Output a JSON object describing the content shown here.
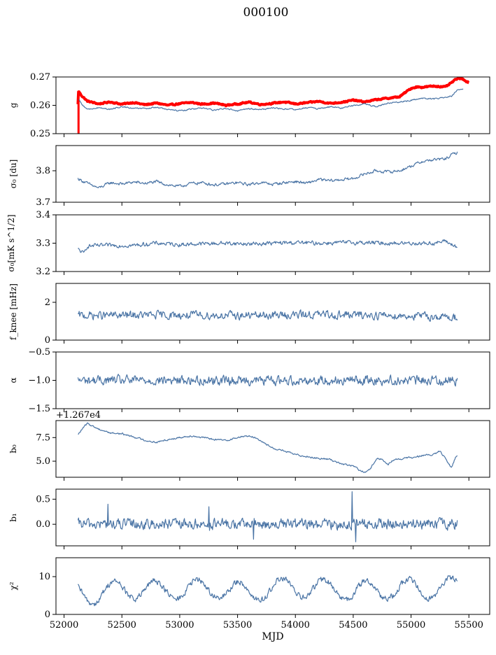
{
  "figure": {
    "title": "000100"
  },
  "chart_data": [
    {
      "type": "line",
      "title": "000100",
      "xlabel": "",
      "ylabel": "g",
      "xlim": [
        51930,
        55680
      ],
      "ylim": [
        0.25,
        0.27
      ],
      "yticks": [
        0.25,
        0.26,
        0.27
      ],
      "ytick_labels": [
        "0.25",
        "0.26",
        "0.27"
      ],
      "series": [
        {
          "name": "",
          "color": "#ff0000",
          "style": "thick",
          "points": [
            [
              52120,
              0.2603
            ],
            [
              52125,
              0.265
            ],
            [
              52150,
              0.2635
            ],
            [
              52200,
              0.2615
            ],
            [
              52300,
              0.2605
            ],
            [
              52400,
              0.2612
            ],
            [
              52500,
              0.2604
            ],
            [
              52600,
              0.261
            ],
            [
              52700,
              0.2602
            ],
            [
              52800,
              0.2608
            ],
            [
              52900,
              0.26
            ],
            [
              53000,
              0.2606
            ],
            [
              53100,
              0.261
            ],
            [
              53200,
              0.2604
            ],
            [
              53300,
              0.2608
            ],
            [
              53400,
              0.26
            ],
            [
              53500,
              0.2605
            ],
            [
              53600,
              0.2611
            ],
            [
              53700,
              0.2603
            ],
            [
              53800,
              0.2607
            ],
            [
              53900,
              0.2612
            ],
            [
              54000,
              0.2605
            ],
            [
              54100,
              0.2609
            ],
            [
              54200,
              0.2614
            ],
            [
              54300,
              0.2607
            ],
            [
              54400,
              0.2611
            ],
            [
              54500,
              0.2618
            ],
            [
              54600,
              0.2612
            ],
            [
              54700,
              0.262
            ],
            [
              54800,
              0.2625
            ],
            [
              54900,
              0.263
            ],
            [
              55000,
              0.266
            ],
            [
              55050,
              0.2665
            ],
            [
              55100,
              0.2664
            ],
            [
              55200,
              0.2668
            ],
            [
              55300,
              0.2665
            ],
            [
              55400,
              0.2695
            ],
            [
              55450,
              0.2692
            ],
            [
              55500,
              0.268
            ]
          ]
        },
        {
          "name": "",
          "color": "#4a74a5",
          "style": "thin",
          "points": [
            [
              52130,
              0.262
            ],
            [
              52150,
              0.2605
            ],
            [
              52200,
              0.2585
            ],
            [
              52300,
              0.2592
            ],
            [
              52400,
              0.2586
            ],
            [
              52500,
              0.2595
            ],
            [
              52600,
              0.259
            ],
            [
              52700,
              0.2588
            ],
            [
              52800,
              0.2593
            ],
            [
              52900,
              0.2585
            ],
            [
              53000,
              0.258
            ],
            [
              53100,
              0.2587
            ],
            [
              53200,
              0.259
            ],
            [
              53300,
              0.2583
            ],
            [
              53400,
              0.259
            ],
            [
              53500,
              0.258
            ],
            [
              53600,
              0.2588
            ],
            [
              53700,
              0.2585
            ],
            [
              53800,
              0.259
            ],
            [
              53900,
              0.2588
            ],
            [
              54000,
              0.2585
            ],
            [
              54100,
              0.2592
            ],
            [
              54200,
              0.2588
            ],
            [
              54300,
              0.2595
            ],
            [
              54400,
              0.259
            ],
            [
              54500,
              0.26
            ],
            [
              54600,
              0.2605
            ],
            [
              54700,
              0.2595
            ],
            [
              54800,
              0.2608
            ],
            [
              54900,
              0.2612
            ],
            [
              55000,
              0.2618
            ],
            [
              55100,
              0.2625
            ],
            [
              55200,
              0.2622
            ],
            [
              55300,
              0.263
            ],
            [
              55350,
              0.2632
            ],
            [
              55400,
              0.2655
            ],
            [
              55450,
              0.2658
            ]
          ]
        }
      ]
    },
    {
      "type": "line",
      "title": "",
      "xlabel": "",
      "ylabel": "σ₀ [du]",
      "xlim": [
        51930,
        55680
      ],
      "ylim": [
        3.7,
        3.88
      ],
      "yticks": [
        3.7,
        3.8
      ],
      "ytick_labels": [
        "3.7",
        "3.8"
      ],
      "series": [
        {
          "name": "",
          "color": "#4a74a5",
          "noise": 0.004,
          "points": [
            [
              52120,
              3.775
            ],
            [
              52200,
              3.76
            ],
            [
              52300,
              3.745
            ],
            [
              52400,
              3.762
            ],
            [
              52500,
              3.758
            ],
            [
              52600,
              3.764
            ],
            [
              52700,
              3.76
            ],
            [
              52800,
              3.765
            ],
            [
              52900,
              3.755
            ],
            [
              53000,
              3.75
            ],
            [
              53100,
              3.76
            ],
            [
              53200,
              3.762
            ],
            [
              53300,
              3.755
            ],
            [
              53400,
              3.758
            ],
            [
              53500,
              3.762
            ],
            [
              53600,
              3.756
            ],
            [
              53700,
              3.763
            ],
            [
              53800,
              3.757
            ],
            [
              53900,
              3.762
            ],
            [
              54000,
              3.766
            ],
            [
              54100,
              3.76
            ],
            [
              54200,
              3.772
            ],
            [
              54300,
              3.768
            ],
            [
              54400,
              3.772
            ],
            [
              54500,
              3.775
            ],
            [
              54600,
              3.79
            ],
            [
              54700,
              3.8
            ],
            [
              54800,
              3.796
            ],
            [
              54900,
              3.8
            ],
            [
              55000,
              3.815
            ],
            [
              55100,
              3.83
            ],
            [
              55200,
              3.835
            ],
            [
              55300,
              3.838
            ],
            [
              55350,
              3.85
            ],
            [
              55400,
              3.858
            ]
          ]
        }
      ]
    },
    {
      "type": "line",
      "title": "",
      "xlabel": "",
      "ylabel": "σ₀[mK s^1/2]",
      "xlim": [
        51930,
        55680
      ],
      "ylim": [
        3.2,
        3.4
      ],
      "yticks": [
        3.2,
        3.3,
        3.4
      ],
      "ytick_labels": [
        "3.2",
        "3.3",
        "3.4"
      ],
      "series": [
        {
          "name": "",
          "color": "#4a74a5",
          "noise": 0.006,
          "points": [
            [
              52120,
              3.278
            ],
            [
              52150,
              3.27
            ],
            [
              52170,
              3.262
            ],
            [
              52200,
              3.29
            ],
            [
              52400,
              3.292
            ],
            [
              52600,
              3.292
            ],
            [
              52800,
              3.3
            ],
            [
              53000,
              3.295
            ],
            [
              53200,
              3.298
            ],
            [
              53400,
              3.3
            ],
            [
              53600,
              3.297
            ],
            [
              53800,
              3.3
            ],
            [
              54000,
              3.302
            ],
            [
              54200,
              3.3
            ],
            [
              54400,
              3.302
            ],
            [
              54600,
              3.302
            ],
            [
              54800,
              3.3
            ],
            [
              55000,
              3.3
            ],
            [
              55200,
              3.3
            ],
            [
              55300,
              3.307
            ],
            [
              55400,
              3.285
            ]
          ]
        }
      ]
    },
    {
      "type": "line",
      "title": "",
      "xlabel": "",
      "ylabel": "f_knee [mHz]",
      "xlim": [
        51930,
        55680
      ],
      "ylim": [
        0,
        3
      ],
      "yticks": [
        0,
        2
      ],
      "ytick_labels": [
        "0",
        "2"
      ],
      "series": [
        {
          "name": "",
          "color": "#4a74a5",
          "noise": 0.18,
          "points": [
            [
              52120,
              1.3
            ],
            [
              52800,
              1.32
            ],
            [
              53600,
              1.3
            ],
            [
              54200,
              1.35
            ],
            [
              54900,
              1.3
            ],
            [
              55400,
              1.2
            ]
          ]
        }
      ]
    },
    {
      "type": "line",
      "title": "",
      "xlabel": "",
      "ylabel": "α",
      "xlim": [
        51930,
        55680
      ],
      "ylim": [
        -1.5,
        -0.5
      ],
      "yticks": [
        -1.5,
        -1.0,
        -0.5
      ],
      "ytick_labels": [
        "−1.5",
        "−1.0",
        "−0.5"
      ],
      "series": [
        {
          "name": "",
          "color": "#4a74a5",
          "noise": 0.07,
          "points": [
            [
              52120,
              -1.0
            ],
            [
              55400,
              -1.0
            ]
          ]
        }
      ]
    },
    {
      "type": "line",
      "title": "",
      "xlabel": "",
      "ylabel": "b₀",
      "offset_text": "+1.267e4",
      "xlim": [
        51930,
        55680
      ],
      "ylim": [
        3.3,
        9.3
      ],
      "yticks": [
        5.0,
        7.5
      ],
      "ytick_labels": [
        "5.0",
        "7.5"
      ],
      "series": [
        {
          "name": "",
          "color": "#4a74a5",
          "noise": 0.08,
          "points": [
            [
              52120,
              7.8
            ],
            [
              52150,
              8.3
            ],
            [
              52200,
              9.0
            ],
            [
              52300,
              8.4
            ],
            [
              52400,
              8.0
            ],
            [
              52500,
              7.9
            ],
            [
              52600,
              7.6
            ],
            [
              52700,
              7.2
            ],
            [
              52800,
              7.0
            ],
            [
              52900,
              7.3
            ],
            [
              53000,
              7.5
            ],
            [
              53100,
              7.7
            ],
            [
              53200,
              7.5
            ],
            [
              53300,
              7.3
            ],
            [
              53400,
              7.2
            ],
            [
              53500,
              7.5
            ],
            [
              53600,
              7.7
            ],
            [
              53700,
              7.2
            ],
            [
              53800,
              6.4
            ],
            [
              53900,
              6.1
            ],
            [
              54000,
              5.7
            ],
            [
              54100,
              5.5
            ],
            [
              54200,
              5.3
            ],
            [
              54300,
              5.2
            ],
            [
              54400,
              4.7
            ],
            [
              54500,
              4.5
            ],
            [
              54560,
              4.0
            ],
            [
              54600,
              3.8
            ],
            [
              54650,
              4.2
            ],
            [
              54700,
              5.3
            ],
            [
              54750,
              5.2
            ],
            [
              54800,
              4.6
            ],
            [
              54850,
              5.2
            ],
            [
              54900,
              5.2
            ],
            [
              55000,
              5.4
            ],
            [
              55100,
              5.6
            ],
            [
              55200,
              5.7
            ],
            [
              55250,
              6.1
            ],
            [
              55300,
              5.2
            ],
            [
              55350,
              4.3
            ],
            [
              55380,
              5.3
            ],
            [
              55400,
              5.6
            ]
          ]
        }
      ]
    },
    {
      "type": "line",
      "title": "",
      "xlabel": "",
      "ylabel": "b₁",
      "xlim": [
        51930,
        55680
      ],
      "ylim": [
        -0.43,
        0.7
      ],
      "yticks": [
        0.0,
        0.5
      ],
      "ytick_labels": [
        "0.0",
        "0.5"
      ],
      "series": [
        {
          "name": "",
          "color": "#4a74a5",
          "noise": 0.09,
          "points": [
            [
              52120,
              0.0
            ],
            [
              55400,
              0.0
            ]
          ],
          "spikes": [
            [
              52380,
              0.4
            ],
            [
              53250,
              0.35
            ],
            [
              53640,
              -0.3
            ],
            [
              54490,
              0.65
            ],
            [
              54520,
              -0.35
            ]
          ]
        }
      ]
    },
    {
      "type": "line",
      "title": "",
      "xlabel": "MJD",
      "ylabel": "χ²",
      "xlim": [
        51930,
        55680
      ],
      "ylim": [
        0,
        15
      ],
      "yticks": [
        0,
        10
      ],
      "ytick_labels": [
        "0",
        "10"
      ],
      "xticks": [
        52000,
        52500,
        53000,
        53500,
        54000,
        54500,
        55000,
        55500
      ],
      "xtick_labels": [
        "52000",
        "52500",
        "53000",
        "53500",
        "54000",
        "54500",
        "55000",
        "55500"
      ],
      "series": [
        {
          "name": "",
          "color": "#4a74a5",
          "noise": 0.7,
          "periodic": {
            "period": 365,
            "amplitude": 2.5,
            "phase": 0.6
          },
          "points": [
            [
              52120,
              6.2
            ],
            [
              52300,
              5.0
            ],
            [
              52500,
              7.0
            ],
            [
              52700,
              6.3
            ],
            [
              53000,
              6.5
            ],
            [
              53300,
              6.8
            ],
            [
              53600,
              5.8
            ],
            [
              53900,
              7.2
            ],
            [
              54200,
              6.8
            ],
            [
              54500,
              6.2
            ],
            [
              54800,
              6.6
            ],
            [
              55100,
              6.8
            ],
            [
              55400,
              7.2
            ]
          ]
        }
      ]
    }
  ]
}
